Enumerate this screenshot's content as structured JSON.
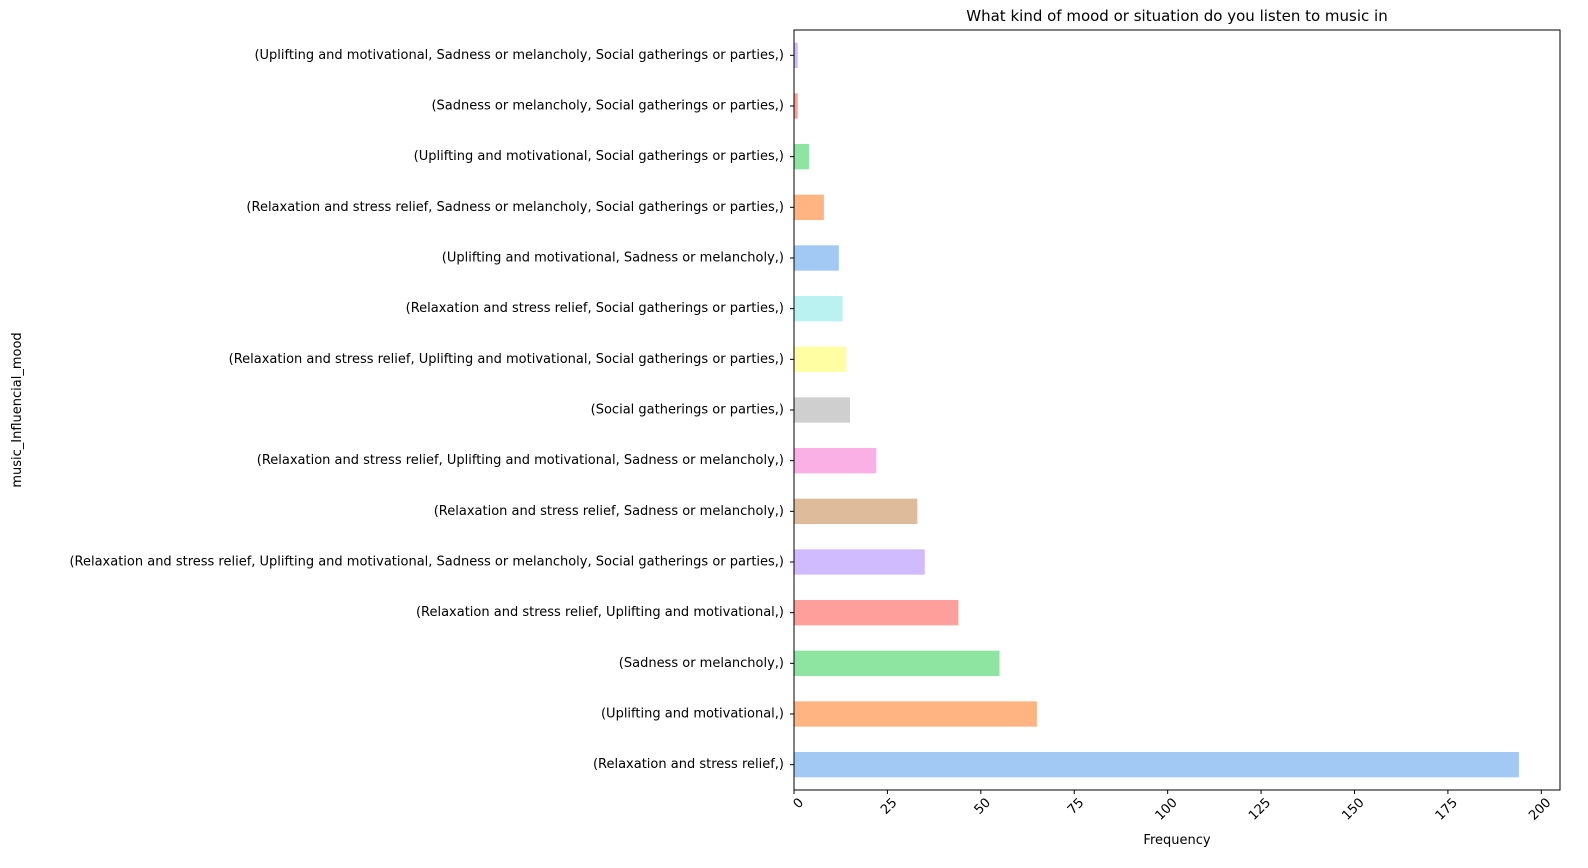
{
  "chart_data": {
    "type": "bar",
    "orientation": "horizontal",
    "title": "What kind of mood or situation do you listen to music in",
    "xlabel": "Frequency",
    "ylabel": "music_Influencial_mood",
    "xlim": [
      0,
      205
    ],
    "xticks": [
      0,
      25,
      50,
      75,
      100,
      125,
      150,
      175,
      200
    ],
    "grid": false,
    "categories": [
      "(Relaxation and stress relief,)",
      "(Uplifting and motivational,)",
      "(Sadness or melancholy,)",
      "(Relaxation and stress relief, Uplifting and motivational,)",
      "(Relaxation and stress relief, Uplifting and motivational, Sadness or melancholy, Social gatherings or parties,)",
      "(Relaxation and stress relief, Sadness or melancholy,)",
      "(Relaxation and stress relief, Uplifting and motivational, Sadness or melancholy,)",
      "(Social gatherings or parties,)",
      "(Relaxation and stress relief, Uplifting and motivational, Social gatherings or parties,)",
      "(Relaxation and stress relief, Social gatherings or parties,)",
      "(Uplifting and motivational, Sadness or melancholy,)",
      "(Relaxation and stress relief, Sadness or melancholy, Social gatherings or parties,)",
      "(Uplifting and motivational, Social gatherings or parties,)",
      "(Sadness or melancholy, Social gatherings or parties,)",
      "(Uplifting and motivational, Sadness or melancholy, Social gatherings or parties,)"
    ],
    "values": [
      194,
      65,
      55,
      44,
      35,
      33,
      22,
      15,
      14,
      13,
      12,
      8,
      4,
      1,
      1
    ],
    "colors": [
      "#a1c9f4",
      "#ffb482",
      "#8de5a1",
      "#ff9f9b",
      "#d0bbff",
      "#debb9b",
      "#fab0e4",
      "#cfcfcf",
      "#fffea3",
      "#b9f2f0",
      "#a1c9f4",
      "#ffb482",
      "#8de5a1",
      "#ff9f9b",
      "#d0bbff"
    ]
  }
}
